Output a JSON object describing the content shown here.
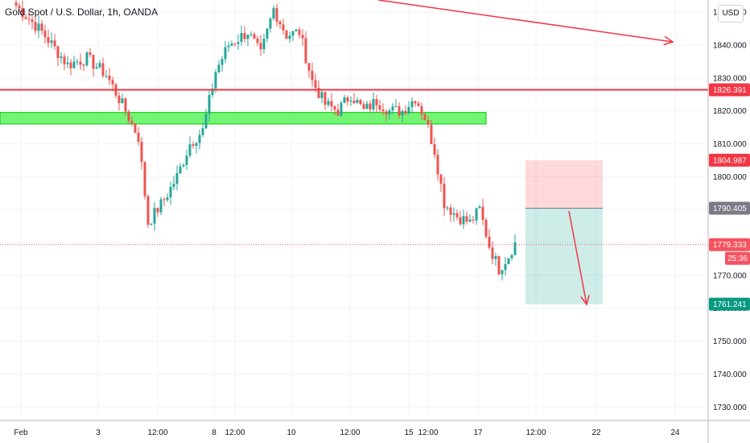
{
  "header": {
    "title": "Gold Spot / U.S. Dollar, 1h, OANDA",
    "currency": "USD"
  },
  "chart_data": {
    "type": "candlestick",
    "symbol": "XAUUSD",
    "ylim": [
      1725,
      1855
    ],
    "y_ticks": [
      {
        "value": 1850,
        "label": "1850.000"
      },
      {
        "value": 1840,
        "label": "1840.000"
      },
      {
        "value": 1830,
        "label": "1830.000"
      },
      {
        "value": 1820,
        "label": "1820.000"
      },
      {
        "value": 1810,
        "label": "1810.000"
      },
      {
        "value": 1800,
        "label": "1800.000"
      },
      {
        "value": 1790,
        "label": "1790.000"
      },
      {
        "value": 1780,
        "label": "1780.000"
      },
      {
        "value": 1770,
        "label": "1770.000"
      },
      {
        "value": 1760,
        "label": "1760.000"
      },
      {
        "value": 1750,
        "label": "1750.000"
      },
      {
        "value": 1740,
        "label": "1740.000"
      },
      {
        "value": 1730,
        "label": "1730.000"
      }
    ],
    "x_ticks": [
      "Feb",
      "3",
      "12:00",
      "8",
      "12:00",
      "10",
      "12:00",
      "15",
      "12:00",
      "17",
      "12:00",
      "22",
      "24"
    ],
    "price_tags": [
      {
        "value": 1826.391,
        "label": "1826.391",
        "color": "#f23645"
      },
      {
        "value": 1804.987,
        "label": "1804.987",
        "color": "#f23645"
      },
      {
        "value": 1790.405,
        "label": "1790.405",
        "color": "#787b86"
      },
      {
        "value": 1779.333,
        "label": "1779.333",
        "color": "#f7525f"
      },
      {
        "value": 1761.241,
        "label": "1761.241",
        "color": "#089981"
      }
    ],
    "countdown": "25:36",
    "annotations": {
      "resistance_line": 1826.391,
      "support_zone": [
        1816,
        1819.5
      ],
      "short_position": {
        "entry": 1790.405,
        "stop": 1804.987,
        "target": 1761.241
      },
      "arrows": [
        {
          "from": [
            0,
            1857
          ],
          "to": [
            1.0,
            1842
          ]
        },
        {
          "from": [
            0,
            1789
          ],
          "to": [
            1.0,
            1760
          ]
        }
      ]
    },
    "colors": {
      "up": "#26a69a",
      "down": "#ef5350",
      "line": "#f23645",
      "zone": "#00e600"
    },
    "anchors": [
      {
        "i": 0,
        "p": 1852
      },
      {
        "i": 8,
        "p": 1844
      },
      {
        "i": 16,
        "p": 1834
      },
      {
        "i": 22,
        "p": 1836
      },
      {
        "i": 28,
        "p": 1831
      },
      {
        "i": 34,
        "p": 1820
      },
      {
        "i": 38,
        "p": 1812
      },
      {
        "i": 41,
        "p": 1786
      },
      {
        "i": 46,
        "p": 1793
      },
      {
        "i": 50,
        "p": 1800
      },
      {
        "i": 54,
        "p": 1810
      },
      {
        "i": 58,
        "p": 1814
      },
      {
        "i": 62,
        "p": 1832
      },
      {
        "i": 66,
        "p": 1840
      },
      {
        "i": 72,
        "p": 1844
      },
      {
        "i": 76,
        "p": 1837
      },
      {
        "i": 80,
        "p": 1851
      },
      {
        "i": 84,
        "p": 1843
      },
      {
        "i": 88,
        "p": 1844
      },
      {
        "i": 92,
        "p": 1829
      },
      {
        "i": 96,
        "p": 1822
      },
      {
        "i": 100,
        "p": 1820
      },
      {
        "i": 104,
        "p": 1825
      },
      {
        "i": 108,
        "p": 1820
      },
      {
        "i": 112,
        "p": 1823
      },
      {
        "i": 116,
        "p": 1820
      },
      {
        "i": 120,
        "p": 1820
      },
      {
        "i": 124,
        "p": 1824
      },
      {
        "i": 127,
        "p": 1818
      },
      {
        "i": 130,
        "p": 1808
      },
      {
        "i": 133,
        "p": 1792
      },
      {
        "i": 137,
        "p": 1788
      },
      {
        "i": 141,
        "p": 1786
      },
      {
        "i": 144,
        "p": 1790
      },
      {
        "i": 147,
        "p": 1779
      },
      {
        "i": 150,
        "p": 1772
      },
      {
        "i": 153,
        "p": 1776
      },
      {
        "i": 155,
        "p": 1780
      }
    ]
  }
}
